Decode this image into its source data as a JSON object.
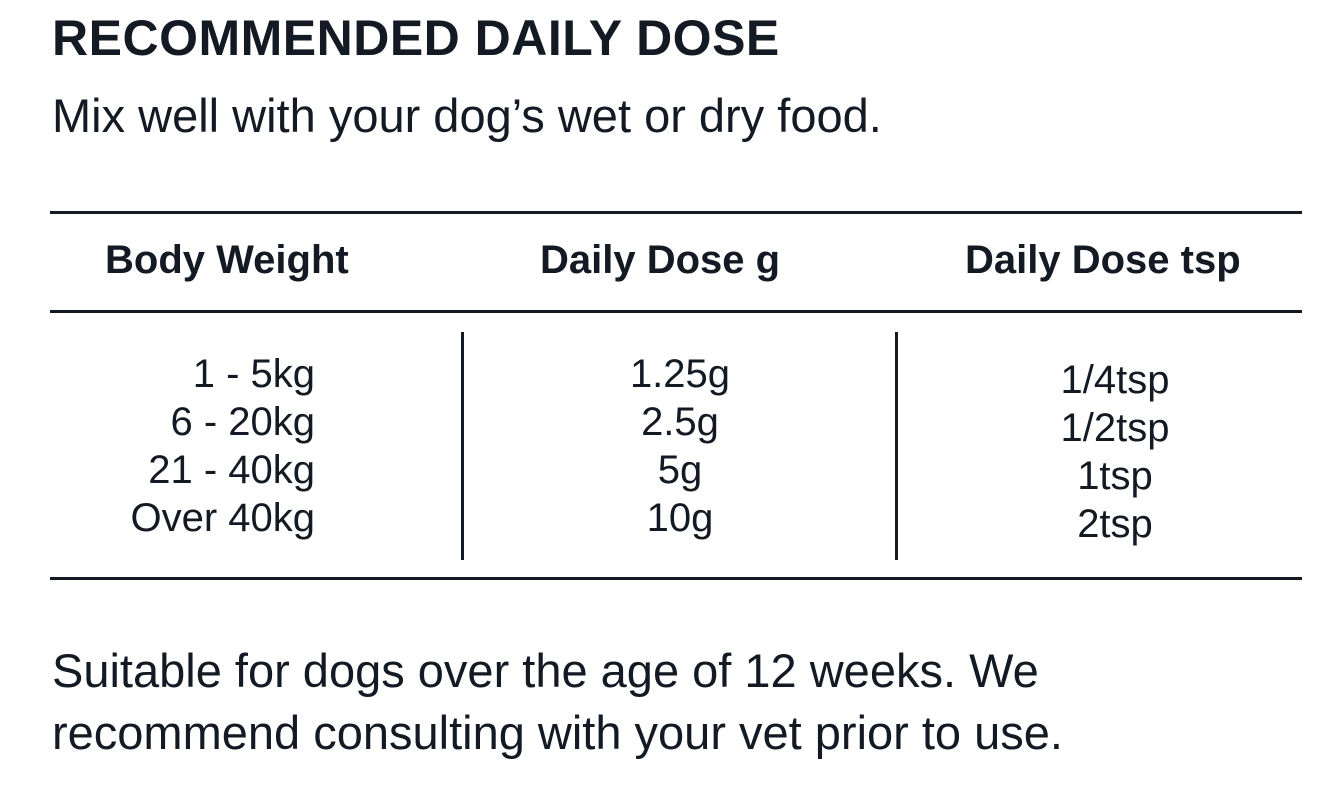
{
  "heading": {
    "title": "RECOMMENDED DAILY DOSE",
    "subtitle": "Mix well with your dog’s wet or dry food."
  },
  "table": {
    "headers": [
      "Body Weight",
      "Daily Dose g",
      "Daily Dose tsp"
    ],
    "rows": [
      {
        "body_weight": "1 - 5kg",
        "dose_g": "1.25g",
        "dose_tsp": "1/4tsp"
      },
      {
        "body_weight": "6 - 20kg",
        "dose_g": "2.5g",
        "dose_tsp": "1/2tsp"
      },
      {
        "body_weight": "21 - 40kg",
        "dose_g": "5g",
        "dose_tsp": "1tsp"
      },
      {
        "body_weight": "Over 40kg",
        "dose_g": "10g",
        "dose_tsp": "2tsp"
      }
    ]
  },
  "footnote": {
    "line1": "Suitable for dogs over the age of 12 weeks. We",
    "line2": "recommend consulting with your vet prior to use."
  },
  "colors": {
    "text": "#131a24",
    "background": "#ffffff"
  }
}
